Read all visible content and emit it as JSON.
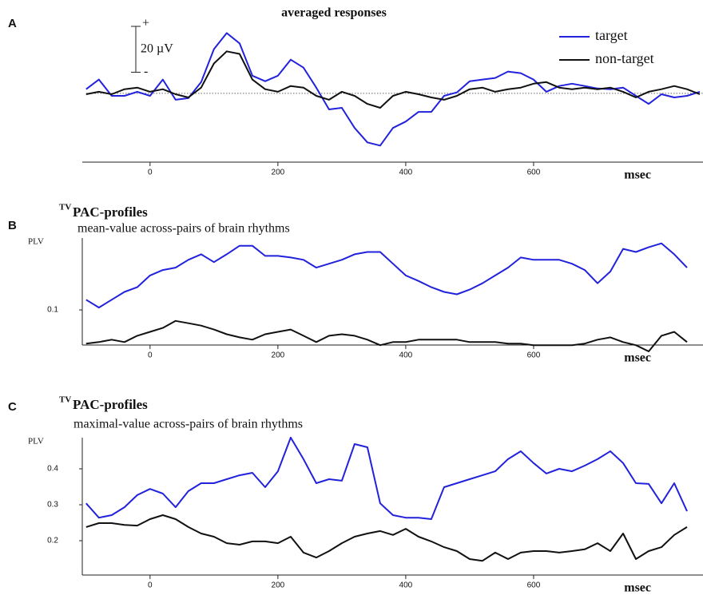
{
  "chart_data": [
    {
      "type": "line",
      "panel_label": "A",
      "title": "averaged responses",
      "scale_bar": {
        "plus": "+",
        "label": "20 µV",
        "minus": "-",
        "value": 20
      },
      "x_label": "msec",
      "xlim": [
        -106,
        865
      ],
      "xticks": [
        0,
        200,
        400,
        600
      ],
      "ylim": [
        -30,
        32
      ],
      "reference_line": 0,
      "x": [
        -100,
        -80,
        -60,
        -40,
        -20,
        0,
        20,
        40,
        60,
        80,
        100,
        120,
        140,
        160,
        180,
        200,
        220,
        240,
        260,
        280,
        300,
        320,
        340,
        360,
        380,
        400,
        420,
        440,
        460,
        480,
        500,
        520,
        540,
        560,
        580,
        600,
        620,
        640,
        660,
        680,
        700,
        720,
        740,
        760,
        780,
        800,
        820,
        840,
        860
      ],
      "series": [
        {
          "name": "target",
          "color": "#2222dd",
          "values": [
            1.8,
            6.0,
            -1.1,
            -1.1,
            0.7,
            -1.1,
            6.0,
            -2.8,
            -2.1,
            4.9,
            19.3,
            26.3,
            21.8,
            7.7,
            5.3,
            7.7,
            14.7,
            11.2,
            2.5,
            -7.0,
            -6.3,
            -15.1,
            -21.4,
            -22.8,
            -15.1,
            -12.3,
            -8.1,
            -8.1,
            -1.1,
            0.4,
            5.3,
            6.0,
            6.7,
            9.5,
            8.8,
            6.0,
            0.7,
            3.2,
            4.2,
            3.2,
            2.1,
            1.8,
            2.5,
            -1.1,
            -4.6,
            -0.4,
            -1.8,
            -1.1,
            0.7
          ]
        },
        {
          "name": "non-target",
          "color": "#111111",
          "values": [
            -0.4,
            0.7,
            -0.4,
            1.8,
            2.5,
            0.7,
            1.8,
            -0.4,
            -1.8,
            2.5,
            13.0,
            18.3,
            17.2,
            6.0,
            1.8,
            0.7,
            3.2,
            2.5,
            -1.1,
            -2.8,
            0.7,
            -1.1,
            -4.6,
            -6.3,
            -1.1,
            0.7,
            -0.4,
            -1.8,
            -2.8,
            -1.1,
            1.8,
            2.5,
            0.7,
            1.8,
            2.5,
            4.2,
            4.9,
            2.5,
            1.8,
            2.5,
            1.8,
            2.5,
            0.7,
            -1.8,
            0.7,
            1.8,
            3.2,
            1.8,
            -0.4
          ]
        }
      ]
    },
    {
      "type": "line",
      "panel_label": "B",
      "title_superscript": "TV",
      "title": "PAC-profiles",
      "subtitle": "mean-value across-pairs of brain rhythms",
      "y_label": "PLV",
      "x_label": "msec",
      "xlim": [
        -106,
        865
      ],
      "xticks": [
        0,
        200,
        400,
        600
      ],
      "ylim": [
        0.045,
        0.2
      ],
      "yticks": [
        0.1
      ],
      "x": [
        -100,
        -80,
        -60,
        -40,
        -20,
        0,
        20,
        40,
        60,
        80,
        100,
        120,
        140,
        160,
        180,
        200,
        220,
        240,
        260,
        280,
        300,
        320,
        340,
        360,
        380,
        400,
        420,
        440,
        460,
        480,
        500,
        520,
        540,
        560,
        580,
        600,
        620,
        640,
        660,
        680,
        700,
        720,
        740,
        760,
        780,
        800,
        820,
        840
      ],
      "series": [
        {
          "color": "#2222dd",
          "values": [
            0.113,
            0.103,
            0.113,
            0.123,
            0.129,
            0.144,
            0.151,
            0.154,
            0.164,
            0.171,
            0.161,
            0.171,
            0.182,
            0.182,
            0.169,
            0.169,
            0.167,
            0.164,
            0.154,
            0.159,
            0.164,
            0.171,
            0.174,
            0.174,
            0.159,
            0.144,
            0.137,
            0.129,
            0.123,
            0.12,
            0.126,
            0.134,
            0.144,
            0.154,
            0.167,
            0.164,
            0.164,
            0.164,
            0.159,
            0.151,
            0.134,
            0.149,
            0.178,
            0.174,
            0.18,
            0.185,
            0.171,
            0.154
          ]
        },
        {
          "color": "#111111",
          "values": [
            0.057,
            0.059,
            0.062,
            0.059,
            0.067,
            0.072,
            0.077,
            0.086,
            0.083,
            0.08,
            0.075,
            0.069,
            0.065,
            0.062,
            0.069,
            0.072,
            0.075,
            0.067,
            0.059,
            0.067,
            0.069,
            0.067,
            0.062,
            0.055,
            0.059,
            0.059,
            0.062,
            0.062,
            0.062,
            0.062,
            0.059,
            0.059,
            0.059,
            0.057,
            0.057,
            0.055,
            0.055,
            0.055,
            0.055,
            0.057,
            0.062,
            0.065,
            0.059,
            0.055,
            0.047,
            0.067,
            0.072,
            0.059
          ]
        }
      ]
    },
    {
      "type": "line",
      "panel_label": "C",
      "title_superscript": "TV",
      "title": "PAC-profiles",
      "subtitle": "maximal-value across-pairs of brain rhythms",
      "y_label": "PLV",
      "x_label": "msec",
      "xlim": [
        -106,
        865
      ],
      "xticks": [
        0,
        200,
        400,
        600
      ],
      "ylim": [
        0.1,
        0.5
      ],
      "yticks": [
        0.2,
        0.3,
        0.4
      ],
      "x": [
        -100,
        -80,
        -60,
        -40,
        -20,
        0,
        20,
        40,
        60,
        80,
        100,
        120,
        140,
        160,
        180,
        200,
        220,
        240,
        260,
        280,
        300,
        320,
        340,
        360,
        380,
        400,
        420,
        440,
        460,
        480,
        500,
        520,
        540,
        560,
        580,
        600,
        620,
        640,
        660,
        680,
        700,
        720,
        740,
        760,
        780,
        800,
        820,
        840
      ],
      "series": [
        {
          "color": "#2222dd",
          "values": [
            0.304,
            0.264,
            0.271,
            0.293,
            0.327,
            0.344,
            0.331,
            0.293,
            0.338,
            0.36,
            0.36,
            0.371,
            0.382,
            0.389,
            0.349,
            0.393,
            0.487,
            0.427,
            0.36,
            0.371,
            0.367,
            0.469,
            0.46,
            0.304,
            0.271,
            0.264,
            0.264,
            0.26,
            0.349,
            0.36,
            0.371,
            0.382,
            0.393,
            0.427,
            0.449,
            0.416,
            0.387,
            0.4,
            0.393,
            0.409,
            0.427,
            0.449,
            0.416,
            0.36,
            0.358,
            0.304,
            0.36,
            0.282
          ]
        },
        {
          "color": "#111111",
          "values": [
            0.238,
            0.249,
            0.249,
            0.244,
            0.242,
            0.26,
            0.271,
            0.26,
            0.238,
            0.22,
            0.211,
            0.193,
            0.189,
            0.198,
            0.198,
            0.193,
            0.211,
            0.167,
            0.153,
            0.171,
            0.193,
            0.211,
            0.22,
            0.227,
            0.216,
            0.233,
            0.211,
            0.198,
            0.182,
            0.171,
            0.149,
            0.144,
            0.167,
            0.149,
            0.167,
            0.171,
            0.171,
            0.167,
            0.171,
            0.176,
            0.193,
            0.171,
            0.22,
            0.149,
            0.171,
            0.182,
            0.216,
            0.238
          ]
        }
      ]
    }
  ]
}
